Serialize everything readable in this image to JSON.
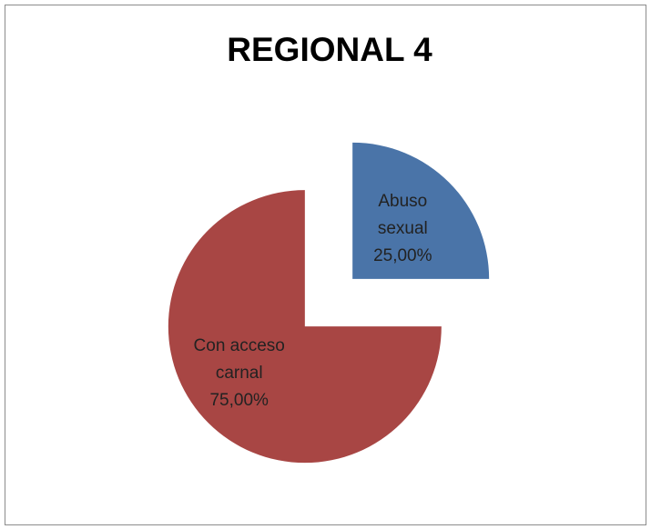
{
  "chart_data": {
    "type": "pie",
    "title": "REGIONAL 4",
    "categories": [
      "Abuso sexual",
      "Con acceso carnal"
    ],
    "values": [
      25,
      75
    ],
    "value_labels": [
      "25,00%",
      "75,00%"
    ],
    "colors": [
      "#4a74a8",
      "#a84644"
    ]
  }
}
